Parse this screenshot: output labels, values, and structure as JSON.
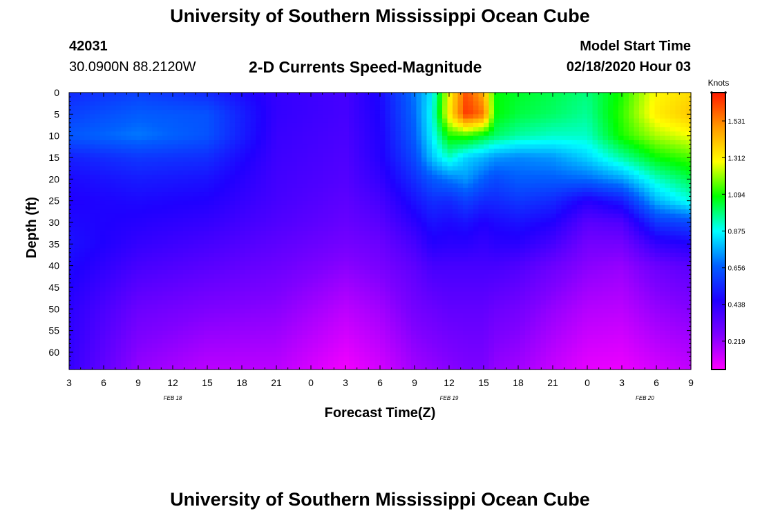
{
  "header": {
    "title": "University of Southern Mississippi Ocean Cube",
    "station_id": "42031",
    "location": "30.0900N 88.2120W",
    "chart_title": "2-D Currents Speed-Magnitude",
    "model_label": "Model Start Time",
    "model_time": "02/18/2020 Hour 03"
  },
  "footer": {
    "title": "University of Southern Mississippi Ocean Cube"
  },
  "colors": {
    "magenta": "#ff00ff",
    "purple": "#7f00ff",
    "deep_blue": "#1f00ff",
    "blue": "#0060ff",
    "cyan": "#00ffff",
    "green": "#00ff00",
    "yellow": "#ffff00",
    "orange": "#ff9900",
    "red": "#ff1a00"
  },
  "chart_data": {
    "type": "heatmap",
    "title": "2-D Currents Speed-Magnitude",
    "xlabel": "Forecast Time(Z)",
    "ylabel": "Depth (ft)",
    "x_tick_labels": [
      "3",
      "6",
      "9",
      "12",
      "15",
      "18",
      "21",
      "0",
      "3",
      "6",
      "9",
      "12",
      "15",
      "18",
      "21",
      "0",
      "3",
      "6",
      "9"
    ],
    "x_hours_from_start": [
      0,
      3,
      6,
      9,
      12,
      15,
      18,
      21,
      24,
      27,
      30,
      33,
      36,
      39,
      42,
      45,
      48,
      51,
      54
    ],
    "x_range_hours": [
      0,
      54
    ],
    "date_labels": [
      {
        "text": "FEB 18",
        "hour": 9
      },
      {
        "text": "FEB 19",
        "hour": 33
      },
      {
        "text": "FEB 20",
        "hour": 50
      }
    ],
    "y_tick_labels": [
      "0",
      "5",
      "10",
      "15",
      "20",
      "25",
      "30",
      "35",
      "40",
      "45",
      "50",
      "55",
      "60"
    ],
    "y_values": [
      0,
      5,
      10,
      15,
      20,
      25,
      30,
      35,
      40,
      45,
      50,
      55,
      60
    ],
    "y_range": [
      0,
      64
    ],
    "y_inverted": true,
    "colorbar": {
      "units": "Knots",
      "range": [
        0.05,
        1.7
      ],
      "tick_values": [
        1.531,
        1.312,
        1.094,
        0.875,
        0.656,
        0.438,
        0.219
      ],
      "tick_labels": [
        "1.531",
        "1.312",
        "1.094",
        "0.875",
        "0.656",
        "0.438",
        "0.219"
      ],
      "colormap": [
        "#ff00ff",
        "#7f00ff",
        "#1f00ff",
        "#0060ff",
        "#00ffff",
        "#00ff00",
        "#ffff00",
        "#ff9900",
        "#ff1a00"
      ]
    },
    "grid": {
      "time_hours": [
        0,
        6,
        12,
        18,
        24,
        27,
        30,
        31.5,
        33,
        34.5,
        36,
        37,
        39,
        42,
        45,
        48,
        51,
        54
      ],
      "depths": [
        0,
        5,
        10,
        15,
        20,
        25,
        30,
        35,
        40,
        50,
        64
      ],
      "speeds_knots": [
        [
          0.55,
          0.6,
          0.65,
          0.53,
          0.48,
          0.46,
          0.48,
          0.5,
          0.48,
          0.44,
          0.42
        ],
        [
          0.6,
          0.66,
          0.7,
          0.58,
          0.52,
          0.48,
          0.45,
          0.42,
          0.38,
          0.3,
          0.22
        ],
        [
          0.55,
          0.64,
          0.64,
          0.56,
          0.5,
          0.46,
          0.42,
          0.38,
          0.34,
          0.26,
          0.16
        ],
        [
          0.42,
          0.42,
          0.41,
          0.4,
          0.39,
          0.38,
          0.36,
          0.33,
          0.3,
          0.24,
          0.16
        ],
        [
          0.38,
          0.38,
          0.37,
          0.36,
          0.35,
          0.33,
          0.31,
          0.28,
          0.24,
          0.16,
          0.07
        ],
        [
          0.48,
          0.47,
          0.46,
          0.45,
          0.42,
          0.38,
          0.34,
          0.3,
          0.27,
          0.2,
          0.12
        ],
        [
          0.7,
          0.68,
          0.66,
          0.62,
          0.56,
          0.5,
          0.44,
          0.38,
          0.33,
          0.28,
          0.2
        ],
        [
          0.85,
          0.88,
          0.86,
          0.8,
          0.65,
          0.56,
          0.5,
          0.45,
          0.38,
          0.3,
          0.22
        ],
        [
          1.3,
          1.32,
          1.1,
          0.92,
          0.7,
          0.55,
          0.48,
          0.44,
          0.38,
          0.32,
          0.24
        ],
        [
          1.62,
          1.66,
          1.12,
          0.82,
          0.74,
          0.6,
          0.5,
          0.44,
          0.38,
          0.32,
          0.26
        ],
        [
          1.45,
          1.55,
          1.05,
          0.78,
          0.66,
          0.55,
          0.46,
          0.42,
          0.38,
          0.32,
          0.26
        ],
        [
          1.08,
          1.08,
          1.0,
          0.74,
          0.62,
          0.55,
          0.48,
          0.44,
          0.38,
          0.3,
          0.22
        ],
        [
          1.05,
          1.03,
          0.95,
          0.72,
          0.66,
          0.58,
          0.5,
          0.44,
          0.36,
          0.28,
          0.2
        ],
        [
          1.02,
          1.0,
          0.92,
          0.74,
          0.66,
          0.55,
          0.46,
          0.38,
          0.3,
          0.22,
          0.14
        ],
        [
          0.98,
          0.96,
          0.92,
          0.82,
          0.68,
          0.45,
          0.34,
          0.28,
          0.24,
          0.17,
          0.09
        ],
        [
          1.1,
          1.12,
          1.1,
          0.95,
          0.75,
          0.52,
          0.36,
          0.28,
          0.22,
          0.16,
          0.08
        ],
        [
          1.3,
          1.32,
          1.22,
          1.08,
          0.92,
          0.78,
          0.58,
          0.42,
          0.3,
          0.22,
          0.12
        ],
        [
          1.36,
          1.4,
          1.28,
          1.14,
          1.02,
          0.9,
          0.62,
          0.46,
          0.34,
          0.25,
          0.15
        ]
      ]
    }
  }
}
